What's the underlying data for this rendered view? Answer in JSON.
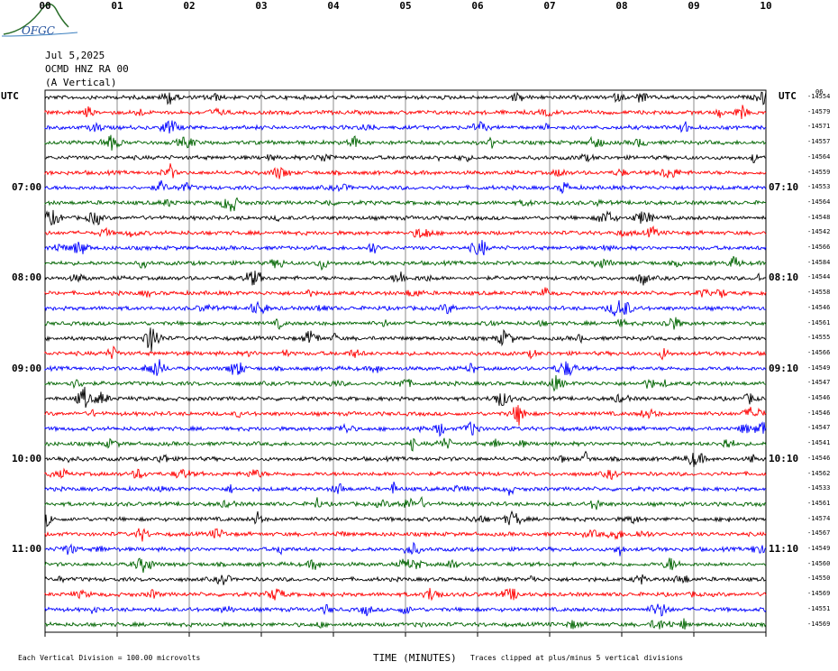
{
  "header": {
    "logo_text": "OFGC",
    "date": "Jul 5,2025",
    "station": "OCMD HNZ RA 00",
    "component": "(A Vertical)",
    "left_tz": "UTC",
    "right_tz": "UTC",
    "right_top_label": "06"
  },
  "chart_data": {
    "type": "helicorder",
    "xlabel": "TIME (MINUTES)",
    "x_ticks": [
      "00",
      "01",
      "02",
      "03",
      "04",
      "05",
      "06",
      "07",
      "08",
      "09",
      "10"
    ],
    "xlim": [
      0,
      10
    ],
    "trace_colors": [
      "#000000",
      "#ff0000",
      "#0000ff",
      "#006400"
    ],
    "left_hour_labels": [
      {
        "row": 6,
        "label": "07:00"
      },
      {
        "row": 12,
        "label": "08:00"
      },
      {
        "row": 18,
        "label": "09:00"
      },
      {
        "row": 24,
        "label": "10:00"
      },
      {
        "row": 30,
        "label": "11:00"
      }
    ],
    "right_hour_labels": [
      {
        "row": 6,
        "label": "07:10"
      },
      {
        "row": 12,
        "label": "08:10"
      },
      {
        "row": 18,
        "label": "09:10"
      },
      {
        "row": 24,
        "label": "10:10"
      },
      {
        "row": 30,
        "label": "11:10"
      }
    ],
    "trace_offsets": [
      "-14554",
      "-14579",
      "-14571",
      "-14557",
      "-14564",
      "-14559",
      "-14553",
      "-14564",
      "-14548",
      "-14542",
      "-14566",
      "-14584",
      "-14544",
      "-14558",
      "-14546",
      "-14561",
      "-14555",
      "-14566",
      "-14549",
      "-14547",
      "-14546",
      "-14546",
      "-14547",
      "-14541",
      "-14546",
      "-14562",
      "-14533",
      "-14561",
      "-14574",
      "-14567",
      "-14549",
      "-14560",
      "-14550",
      "-14569",
      "-14551",
      "-14569"
    ]
  },
  "footer": {
    "scale_note": "Each Vertical Division =  100.00 microvolts",
    "clip_note": "Traces clipped at plus/minus 5 vertical divisions"
  }
}
